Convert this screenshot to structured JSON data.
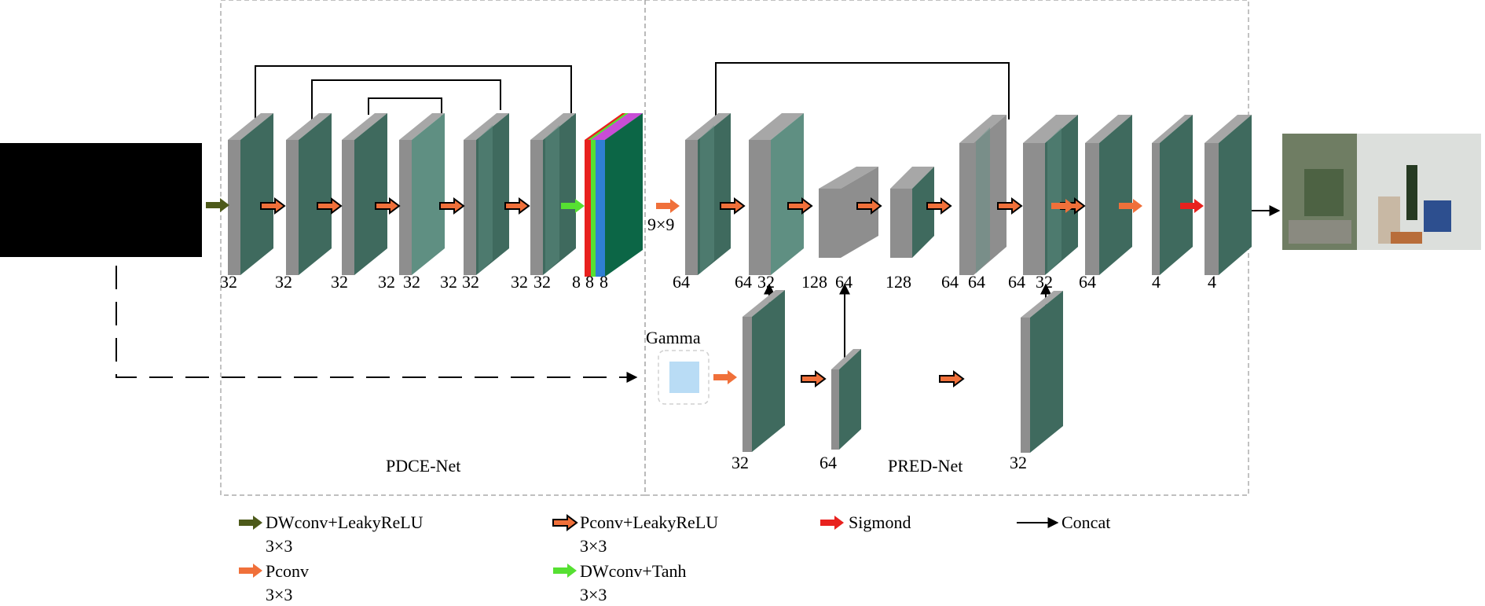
{
  "colors": {
    "face": "#3f6a5e",
    "face_light": "#5f8f82",
    "side": "#8e8e8e",
    "top": "#a7a7a7",
    "dashed_box": "#9a9a9a",
    "input_image": "#000000",
    "gamma_fill": "#b9dcf5",
    "dwconv_arrow": "#4d5a1a",
    "pconv_arrow": "#f0703a",
    "sigmoid_arrow": "#e8211e",
    "tanh_arrow": "#56e032"
  },
  "sections": {
    "pdce": "PDCE-Net",
    "pred": "PRED-Net"
  },
  "gamma_label": "Gamma",
  "kernel_label": "9×9",
  "channel_labels": [
    {
      "text": "32"
    },
    {
      "text": "32"
    },
    {
      "text": "32"
    },
    {
      "text": "32"
    },
    {
      "text": "32"
    },
    {
      "text": "32"
    },
    {
      "text": "32"
    },
    {
      "text": "32"
    },
    {
      "text": "32"
    },
    {
      "text": "8"
    },
    {
      "text": "8"
    },
    {
      "text": "8"
    },
    {
      "text": "64"
    },
    {
      "text": "64"
    },
    {
      "text": "32"
    },
    {
      "text": "128"
    },
    {
      "text": "64"
    },
    {
      "text": "128"
    },
    {
      "text": "64"
    },
    {
      "text": "64"
    },
    {
      "text": "64"
    },
    {
      "text": "32"
    },
    {
      "text": "64"
    },
    {
      "text": "4"
    },
    {
      "text": "4"
    },
    {
      "text": "32"
    },
    {
      "text": "64"
    },
    {
      "text": "32"
    }
  ],
  "legend": [
    {
      "label": "DWconv+LeakyReLU",
      "sub": "3×3",
      "arrow": "dwconv"
    },
    {
      "label": "Pconv",
      "sub": "3×3",
      "arrow": "pconv"
    },
    {
      "label": "Pconv+LeakyReLU",
      "sub": "3×3",
      "arrow": "pconv-leaky"
    },
    {
      "label": "DWconv+Tanh",
      "sub": "3×3",
      "arrow": "tanh"
    },
    {
      "label": "Sigmond",
      "sub": "",
      "arrow": "sigmoid"
    },
    {
      "label": "Concat",
      "sub": "",
      "arrow": "concat"
    }
  ]
}
